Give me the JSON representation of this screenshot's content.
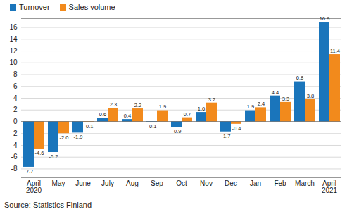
{
  "chart_data": {
    "type": "bar",
    "categories": [
      "April\n2020",
      "May",
      "June",
      "July",
      "Aug",
      "Sep",
      "Oct",
      "Nov",
      "Dec",
      "Jan",
      "Feb",
      "March",
      "April\n2021"
    ],
    "series": [
      {
        "name": "Turnover",
        "color": "#1a75bb",
        "values": [
          -7.7,
          -5.2,
          -1.9,
          0.6,
          0.4,
          -0.1,
          -0.9,
          1.6,
          -1.7,
          1.9,
          4.4,
          6.8,
          16.9
        ]
      },
      {
        "name": "Sales volume",
        "color": "#f28a1c",
        "values": [
          -4.6,
          -2.0,
          -0.1,
          2.3,
          2.2,
          1.9,
          0.7,
          3.2,
          -0.4,
          2.4,
          3.3,
          3.8,
          11.4
        ]
      }
    ],
    "value_labels": [
      [
        "-7.7",
        "-5.2",
        "-1.9",
        "0.6",
        "0.4",
        "-0.1",
        "-0.9",
        "1.6",
        "-1.7",
        "1.9",
        "4.4",
        "6.8",
        "16.9"
      ],
      [
        "-4.6",
        "-2.0",
        "-0.1",
        "2.3",
        "2.2",
        "1.9",
        "0.7",
        "3.2",
        "-0.4",
        "2.4",
        "3.3",
        "3.8",
        "11.4"
      ]
    ],
    "ylim": [
      -9.5,
      17.5
    ],
    "yticks": [
      -8,
      -6,
      -4,
      -2,
      0,
      2,
      4,
      6,
      8,
      10,
      12,
      14,
      16
    ],
    "grid": true,
    "legend": "top-left",
    "data_labels": true,
    "caption": "Source: Statistics Finland"
  }
}
